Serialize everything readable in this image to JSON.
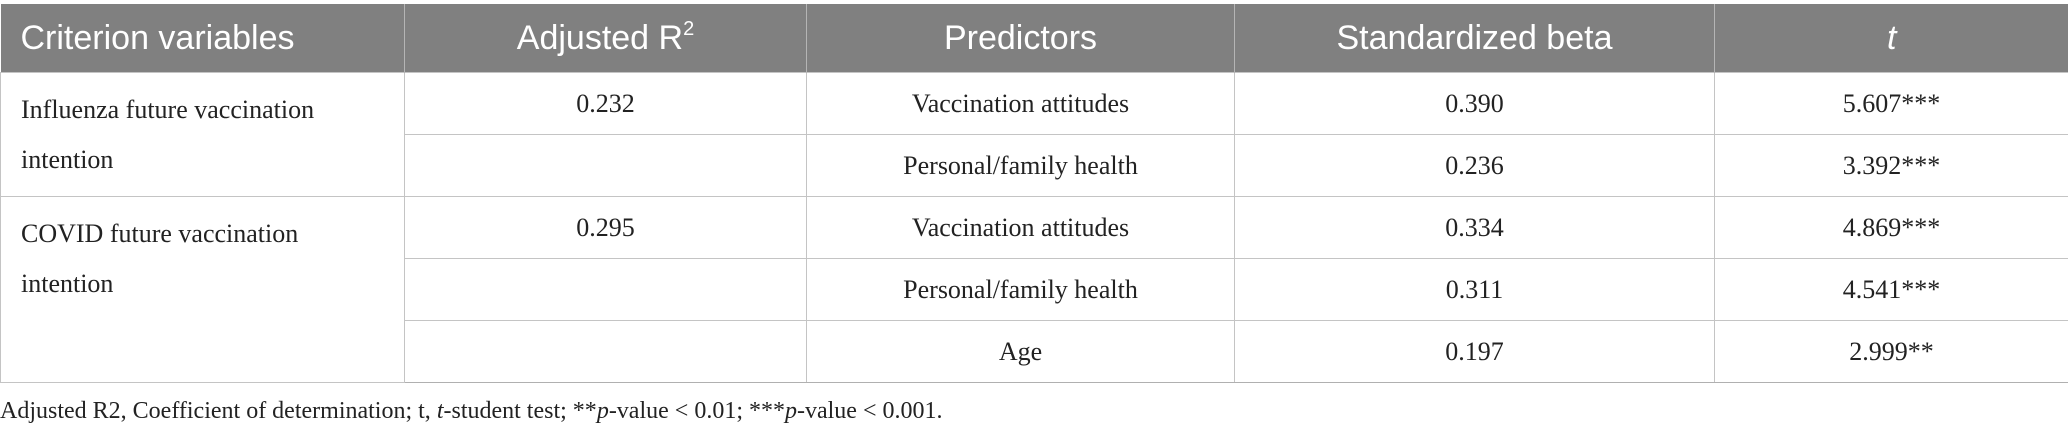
{
  "table": {
    "headers": {
      "criterion": "Criterion variables",
      "adjusted_r2": "Adjusted R",
      "adjusted_r2_sup": "2",
      "predictors": "Predictors",
      "beta": "Standardized beta",
      "t": "t"
    },
    "groups": [
      {
        "criterion": "Influenza future vaccination intention",
        "adjusted_r2": "0.232",
        "rows": [
          {
            "predictor": "Vaccination attitudes",
            "beta": "0.390",
            "t": "5.607***"
          },
          {
            "predictor": "Personal/family health",
            "beta": "0.236",
            "t": "3.392***"
          }
        ]
      },
      {
        "criterion": "COVID future vaccination intention",
        "adjusted_r2": "0.295",
        "rows": [
          {
            "predictor": "Vaccination attitudes",
            "beta": "0.334",
            "t": "4.869***"
          },
          {
            "predictor": "Personal/family health",
            "beta": "0.311",
            "t": "4.541***"
          },
          {
            "predictor": "Age",
            "beta": "0.197",
            "t": "2.999**"
          }
        ]
      }
    ]
  },
  "footnote": {
    "part1": "Adjusted R2, Coefficient of determination; t, ",
    "part2": "t",
    "part3": "-student test; **",
    "part4": "p",
    "part5": "-value < 0.01; ***",
    "part6": "p",
    "part7": "-value < 0.001."
  }
}
